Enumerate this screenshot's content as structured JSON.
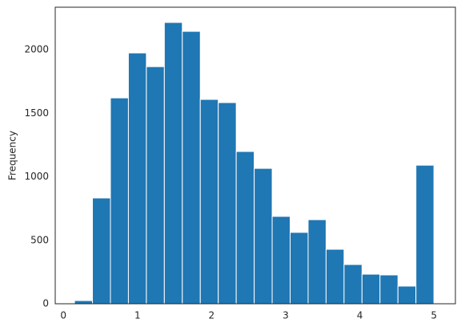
{
  "chart_data": {
    "type": "histogram",
    "y_label": "Frequency",
    "bins": [
      0.15,
      0.3925,
      0.635,
      0.8775,
      1.12,
      1.3625,
      1.605,
      1.8475,
      2.09,
      2.3325,
      2.575,
      2.8175,
      3.06,
      3.3025,
      3.545,
      3.7875,
      4.03,
      4.2725,
      4.515,
      4.7575,
      5.0
    ],
    "values": [
      25,
      833,
      1621,
      1975,
      1867,
      2215,
      2145,
      1609,
      1584,
      1199,
      1066,
      688,
      562,
      662,
      429,
      309,
      233,
      227,
      139,
      1091
    ],
    "color": "#1f77b4",
    "xlim": [
      -0.11,
      5.29
    ],
    "xticks": [
      0,
      1,
      2,
      3,
      4,
      5
    ],
    "ylim": [
      0,
      2335
    ],
    "yticks": [
      0,
      500,
      1000,
      1500,
      2000
    ]
  }
}
